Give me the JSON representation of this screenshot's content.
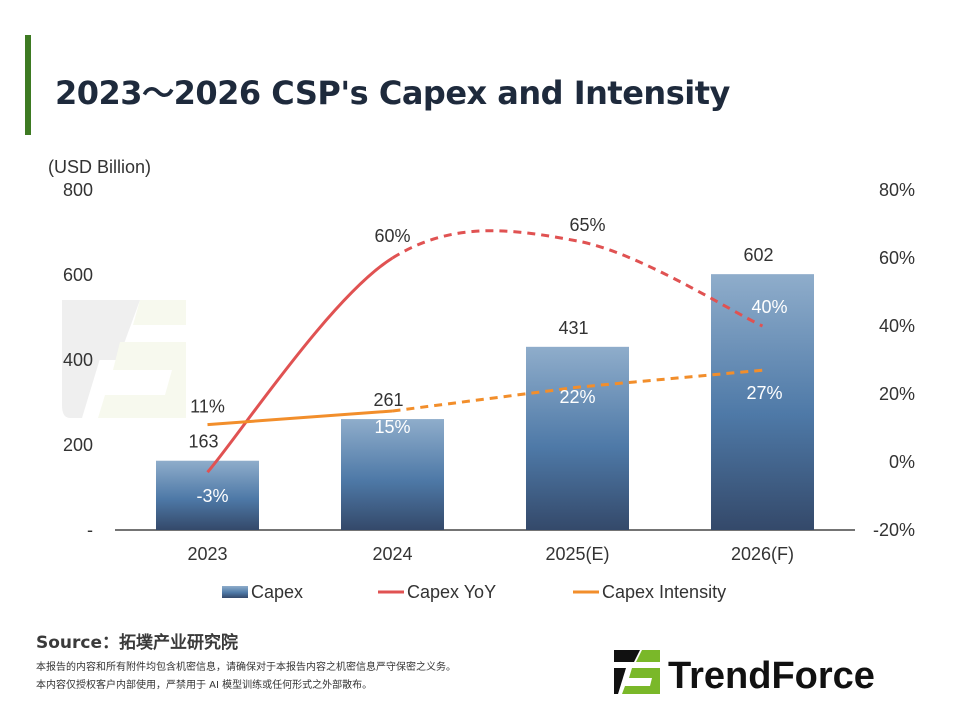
{
  "title": "2023～2026 CSP's Capex and Intensity",
  "source": "Source：拓墣产业研究院",
  "disclaimer": [
    "本报告的内容和所有附件均包含机密信息，请确保对于本报告内容之机密信息严守保密之义务。",
    "本内容仅授权客户内部使用，严禁用于 AI 模型训练或任何形式之外部散布。"
  ],
  "logo_text": "TrendForce",
  "watermark_text": "TrendForce",
  "colors": {
    "accent": "#3d7a22",
    "bar_top": "#8fadcb",
    "bar_mid": "#4e79a7",
    "bar_bottom": "#34496a",
    "yoy": "#e05252",
    "intensity": "#f28e2b",
    "logo_green": "#7ab829"
  },
  "chart_data": {
    "type": "bar+line",
    "categories": [
      "2023",
      "2024",
      "2025(E)",
      "2026(F)"
    ],
    "ylabel": "(USD Billion)",
    "ylim": [
      0,
      800
    ],
    "yticks": [
      "-",
      "200",
      "400",
      "600",
      "800"
    ],
    "y2lim": [
      -20,
      80
    ],
    "y2ticks": [
      "-20%",
      "0%",
      "20%",
      "40%",
      "60%",
      "80%"
    ],
    "grid": false,
    "legend_position": "bottom",
    "series": [
      {
        "name": "Capex",
        "kind": "bar",
        "values": [
          163,
          261,
          431,
          602
        ],
        "labels": [
          "163",
          "261",
          "431",
          "602"
        ]
      },
      {
        "name": "Capex YoY",
        "kind": "line",
        "axis": "right",
        "smooth": true,
        "dashed_from_index": 1,
        "values": [
          -3,
          60,
          65,
          40
        ],
        "labels": [
          "-3%",
          "60%",
          "65%",
          "40%"
        ]
      },
      {
        "name": "Capex Intensity",
        "kind": "line",
        "axis": "right",
        "dashed_from_index": 1,
        "values": [
          11,
          15,
          22,
          27
        ],
        "labels": [
          "11%",
          "15%",
          "22%",
          "27%"
        ]
      }
    ]
  }
}
